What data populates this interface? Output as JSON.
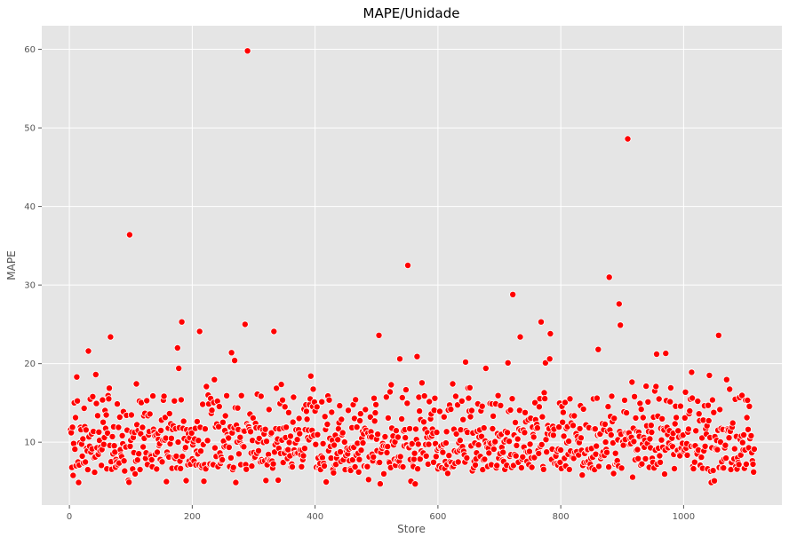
{
  "chart_data": {
    "type": "scatter",
    "title": "MAPE/Unidade",
    "xlabel": "Store",
    "ylabel": "MAPE",
    "xlim": [
      -45,
      1160
    ],
    "ylim": [
      2,
      63
    ],
    "xticks": [
      0,
      200,
      400,
      600,
      800,
      1000
    ],
    "yticks": [
      10,
      20,
      30,
      40,
      50,
      60
    ],
    "grid": true,
    "colors": {
      "background": "#e5e5e5",
      "grid": "#ffffff",
      "marker": "#ff0000"
    },
    "outliers": [
      [
        290,
        59.8
      ],
      [
        909,
        48.6
      ],
      [
        98,
        36.4
      ],
      [
        551,
        32.5
      ],
      [
        879,
        31.0
      ],
      [
        722,
        28.8
      ],
      [
        895,
        27.6
      ],
      [
        897,
        24.9
      ],
      [
        286,
        25.0
      ],
      [
        183,
        25.3
      ],
      [
        768,
        25.3
      ],
      [
        212,
        24.1
      ],
      [
        333,
        24.1
      ],
      [
        67,
        23.4
      ],
      [
        504,
        23.6
      ],
      [
        734,
        23.4
      ],
      [
        783,
        23.8
      ],
      [
        1057,
        23.6
      ],
      [
        176,
        22.0
      ],
      [
        31,
        21.6
      ],
      [
        861,
        21.8
      ],
      [
        264,
        21.4
      ],
      [
        956,
        21.2
      ],
      [
        971,
        21.3
      ],
      [
        566,
        20.9
      ],
      [
        538,
        20.6
      ],
      [
        269,
        20.4
      ],
      [
        645,
        20.2
      ],
      [
        714,
        20.1
      ],
      [
        775,
        20.1
      ],
      [
        782,
        20.6
      ],
      [
        178,
        19.4
      ],
      [
        678,
        19.4
      ],
      [
        1013,
        18.9
      ],
      [
        1042,
        18.5
      ],
      [
        43,
        18.6
      ],
      [
        12,
        18.3
      ]
    ],
    "seed": 7,
    "n_points": 1115
  }
}
